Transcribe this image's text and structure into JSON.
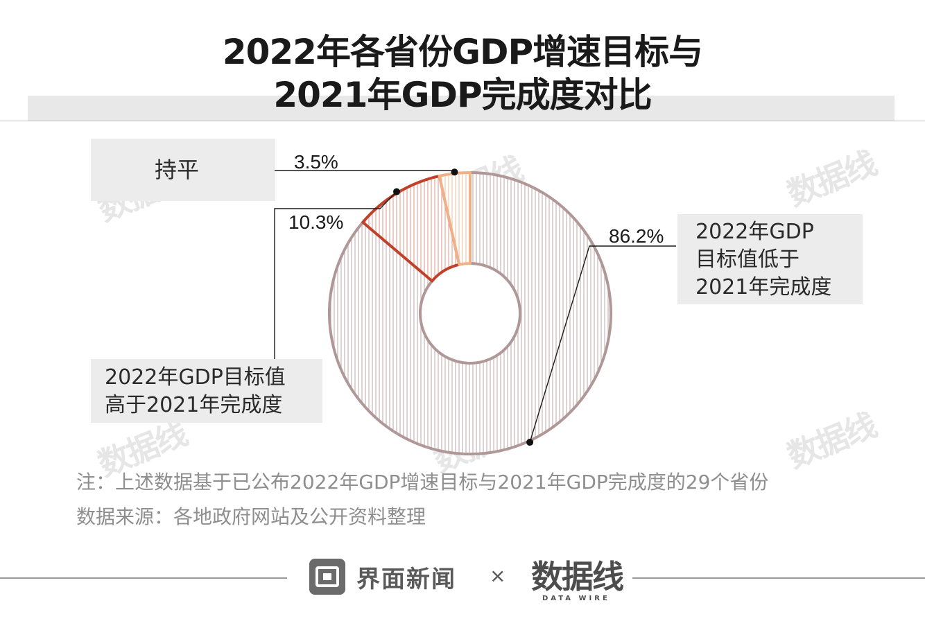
{
  "title": {
    "line1": "2022年各省份GDP增速目标与",
    "line2": "2021年GDP完成度对比"
  },
  "chart_data": {
    "type": "pie",
    "donut": true,
    "title": "2022年各省份GDP增速目标与2021年GDP完成度对比",
    "slices": [
      {
        "label_lines": [
          "2022年GDP",
          "目标值低于",
          "2021年完成度"
        ],
        "value": 86.2,
        "value_label": "86.2%",
        "color": "#b09898"
      },
      {
        "label_lines": [
          "2022年GDP目标值",
          "高于2021年完成度"
        ],
        "value": 10.3,
        "value_label": "10.3%",
        "color": "#c0402a"
      },
      {
        "label_lines": [
          "持平"
        ],
        "value": 3.5,
        "value_label": "3.5%",
        "color": "#f0b088"
      }
    ]
  },
  "notes": {
    "note": "注：上述数据基于已公布2022年GDP增速目标与2021年GDP完成度的29个省份",
    "source": "数据来源：各地政府网站及公开资料整理"
  },
  "footer": {
    "brand": "界面新闻",
    "times": "×",
    "logo": "数据线",
    "logo_sub": "DATA WIRE"
  }
}
